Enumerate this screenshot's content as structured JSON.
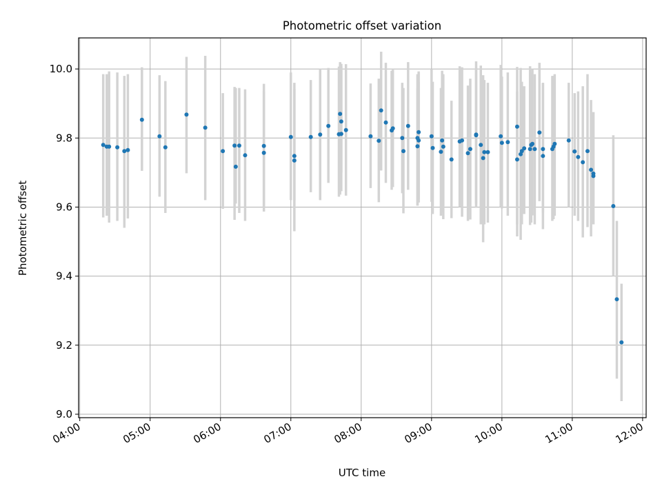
{
  "chart_data": {
    "type": "scatter",
    "title": "Photometric offset variation",
    "xlabel": "UTC time",
    "ylabel": "Photometric offset",
    "xlim": [
      "03:59",
      "12:03"
    ],
    "ylim": [
      8.99,
      10.09
    ],
    "x_ticks": [
      "04:00",
      "05:00",
      "06:00",
      "07:00",
      "08:00",
      "09:00",
      "10:00",
      "11:00",
      "12:00"
    ],
    "y_ticks": [
      9.0,
      9.2,
      9.4,
      9.6,
      9.8,
      10.0
    ],
    "y_tick_labels": [
      "9.0",
      "9.2",
      "9.4",
      "9.6",
      "9.8",
      "10.0"
    ],
    "grid": true,
    "colors": {
      "points": "#1f77b4",
      "errorbars": "#d3d3d3",
      "grid": "#b0b0b0"
    },
    "series": [
      {
        "x": [
          "04:20",
          "04:23",
          "04:25",
          "04:32",
          "04:38",
          "04:41",
          "04:53",
          "05:08",
          "05:13",
          "05:31",
          "05:47",
          "06:02",
          "06:12",
          "06:13",
          "06:16",
          "06:21",
          "06:37",
          "06:37",
          "07:00",
          "07:03",
          "07:03",
          "07:17",
          "07:25",
          "07:32",
          "07:41",
          "07:42",
          "07:43",
          "07:43",
          "07:47",
          "08:08",
          "08:15",
          "08:17",
          "08:21",
          "08:26",
          "08:27",
          "08:35",
          "08:36",
          "08:40",
          "08:48",
          "08:48",
          "08:49",
          "08:49",
          "09:00",
          "09:01",
          "09:08",
          "09:09",
          "09:10",
          "09:17",
          "09:24",
          "09:26",
          "09:31",
          "09:33",
          "09:38",
          "09:38",
          "09:42",
          "09:44",
          "09:45",
          "09:48",
          "09:59",
          "10:00",
          "10:05",
          "10:13",
          "10:13",
          "10:16",
          "10:17",
          "10:19",
          "10:24",
          "10:25",
          "10:26",
          "10:28",
          "10:32",
          "10:35",
          "10:35",
          "10:43",
          "10:44",
          "10:45",
          "10:57",
          "11:02",
          "11:05",
          "11:09",
          "11:13",
          "11:16",
          "11:18",
          "11:18",
          "11:35",
          "11:38",
          "11:42"
        ],
        "y": [
          9.78,
          9.775,
          9.775,
          9.773,
          9.762,
          9.765,
          9.853,
          9.805,
          9.773,
          9.868,
          9.83,
          9.762,
          9.778,
          9.717,
          9.778,
          9.75,
          9.777,
          9.757,
          9.803,
          9.748,
          9.735,
          9.803,
          9.81,
          9.835,
          9.811,
          9.87,
          9.812,
          9.848,
          9.823,
          9.805,
          9.792,
          9.88,
          9.845,
          9.822,
          9.828,
          9.8,
          9.762,
          9.835,
          9.776,
          9.8,
          9.793,
          9.817,
          9.805,
          9.771,
          9.76,
          9.793,
          9.775,
          9.738,
          9.79,
          9.793,
          9.756,
          9.768,
          9.81,
          9.808,
          9.78,
          9.742,
          9.759,
          9.759,
          9.805,
          9.786,
          9.788,
          9.833,
          9.738,
          9.753,
          9.762,
          9.77,
          9.768,
          9.78,
          9.783,
          9.768,
          9.816,
          9.768,
          9.748,
          9.768,
          9.775,
          9.783,
          9.793,
          9.761,
          9.745,
          9.73,
          9.762,
          9.708,
          9.69,
          9.697,
          9.603,
          9.333,
          9.208
        ],
        "err_low": [
          9.57,
          9.575,
          9.555,
          9.56,
          9.54,
          9.567,
          9.705,
          9.63,
          9.583,
          9.698,
          9.62,
          9.595,
          9.563,
          9.61,
          9.583,
          9.56,
          9.587,
          9.597,
          9.62,
          9.62,
          9.53,
          9.643,
          9.62,
          9.67,
          9.63,
          9.636,
          9.646,
          9.7,
          9.633,
          9.655,
          9.614,
          9.706,
          9.67,
          9.65,
          9.658,
          9.64,
          9.582,
          9.65,
          9.604,
          9.605,
          9.613,
          9.624,
          9.615,
          9.58,
          9.575,
          9.585,
          9.565,
          9.568,
          9.6,
          9.572,
          9.56,
          9.564,
          9.61,
          9.598,
          9.55,
          9.498,
          9.55,
          9.555,
          9.6,
          9.596,
          9.575,
          9.515,
          9.55,
          9.505,
          9.55,
          9.58,
          9.548,
          9.555,
          9.576,
          9.55,
          9.617,
          9.584,
          9.536,
          9.56,
          9.565,
          9.575,
          9.6,
          9.575,
          9.56,
          9.512,
          9.542,
          9.515,
          9.55,
          9.55,
          9.4,
          9.103,
          9.038
        ],
        "err_high": [
          9.985,
          9.985,
          9.993,
          9.99,
          9.98,
          9.985,
          10.005,
          9.982,
          9.965,
          10.035,
          10.038,
          9.93,
          9.948,
          9.945,
          9.945,
          9.941,
          9.957,
          9.935,
          9.99,
          9.96,
          9.942,
          9.968,
          10.0,
          10.003,
          10.007,
          10.02,
          10.007,
          10.015,
          10.014,
          9.958,
          9.972,
          10.05,
          10.018,
          9.995,
          9.998,
          9.96,
          9.945,
          10.02,
          9.945,
          9.985,
          9.962,
          9.993,
          10.0,
          9.963,
          9.945,
          9.995,
          9.985,
          9.908,
          10.008,
          10.005,
          9.952,
          9.972,
          10.003,
          10.022,
          10.01,
          9.982,
          9.968,
          9.96,
          10.012,
          9.978,
          9.99,
          10.006,
          9.935,
          10.003,
          9.963,
          9.95,
          10.008,
          9.99,
          10.0,
          9.985,
          10.018,
          9.96,
          9.958,
          9.98,
          9.98,
          9.985,
          9.96,
          9.93,
          9.935,
          9.95,
          9.985,
          9.91,
          9.875,
          9.875,
          9.808,
          9.56,
          9.378
        ]
      }
    ]
  }
}
